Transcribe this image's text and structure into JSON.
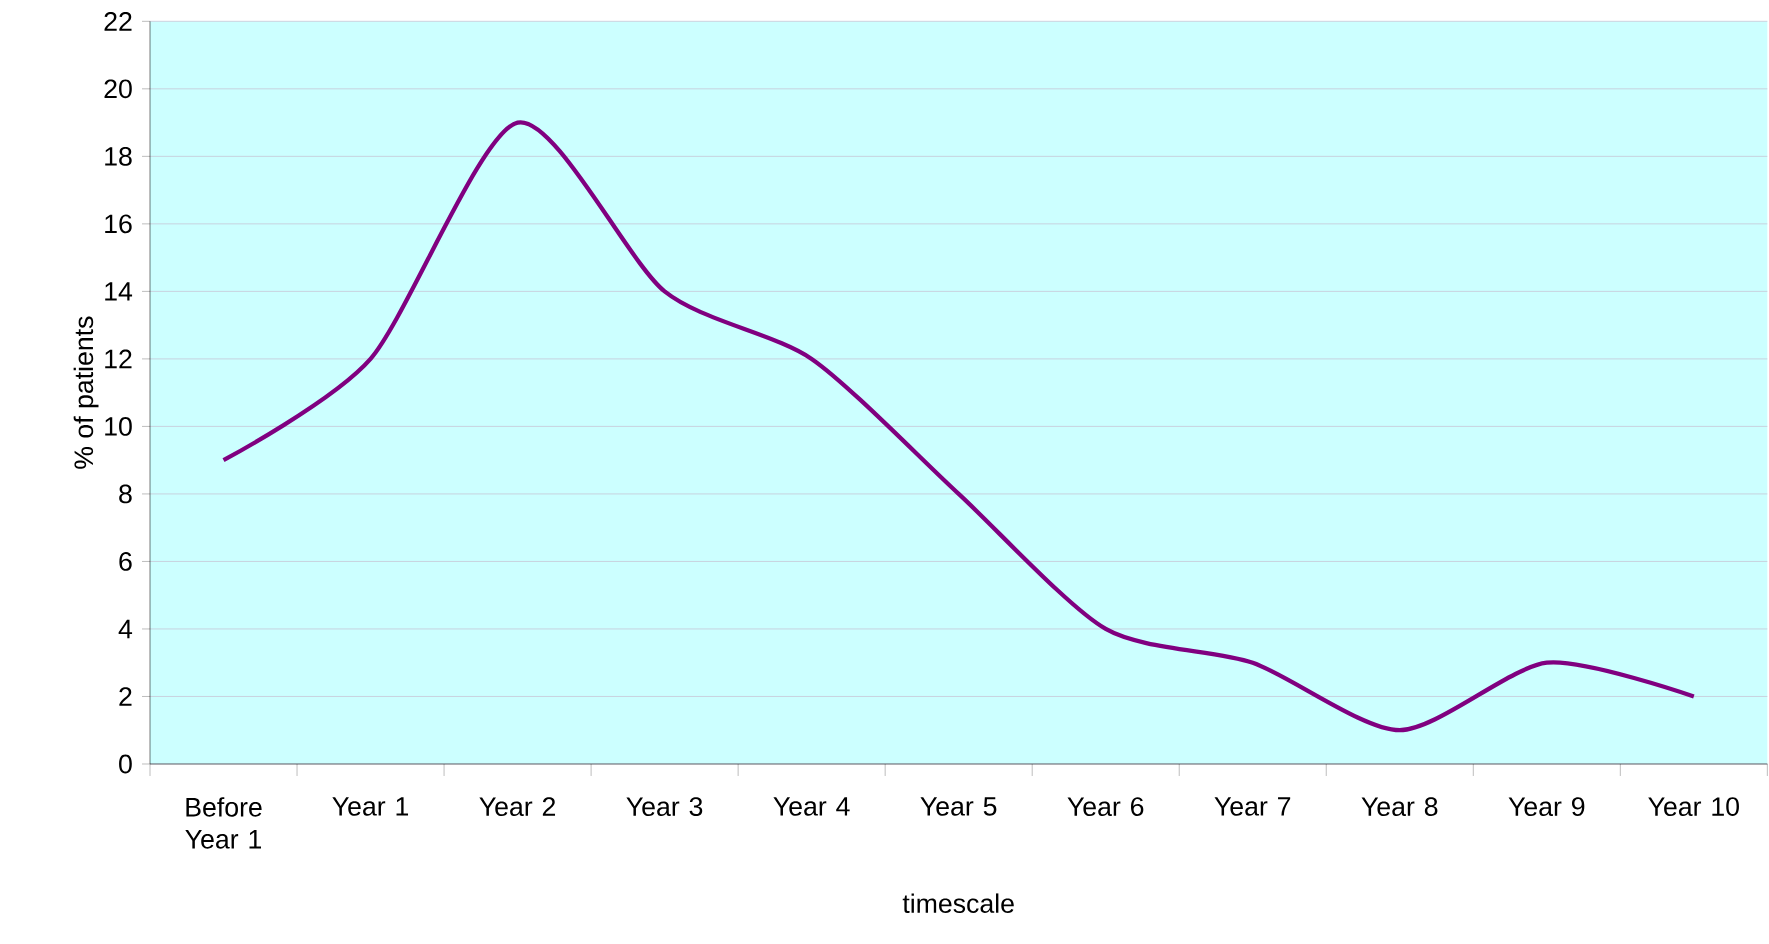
{
  "chart_data": {
    "type": "line",
    "xlabel": "timescale",
    "ylabel": "% of patients",
    "categories": [
      "Before Year 1",
      "Year 1",
      "Year 2",
      "Year 3",
      "Year 4",
      "Year 5",
      "Year 6",
      "Year 7",
      "Year 8",
      "Year 9",
      "Year 10"
    ],
    "series": [
      {
        "color": "#800080",
        "values": [
          9,
          12,
          19,
          14,
          12,
          8,
          4,
          3,
          1,
          3,
          2
        ]
      }
    ],
    "ylim": [
      0,
      22
    ],
    "yticks": [
      0,
      2,
      4,
      6,
      8,
      10,
      12,
      14,
      16,
      18,
      20,
      22
    ],
    "grid": "y",
    "marker": "none",
    "line_style": "solid"
  }
}
